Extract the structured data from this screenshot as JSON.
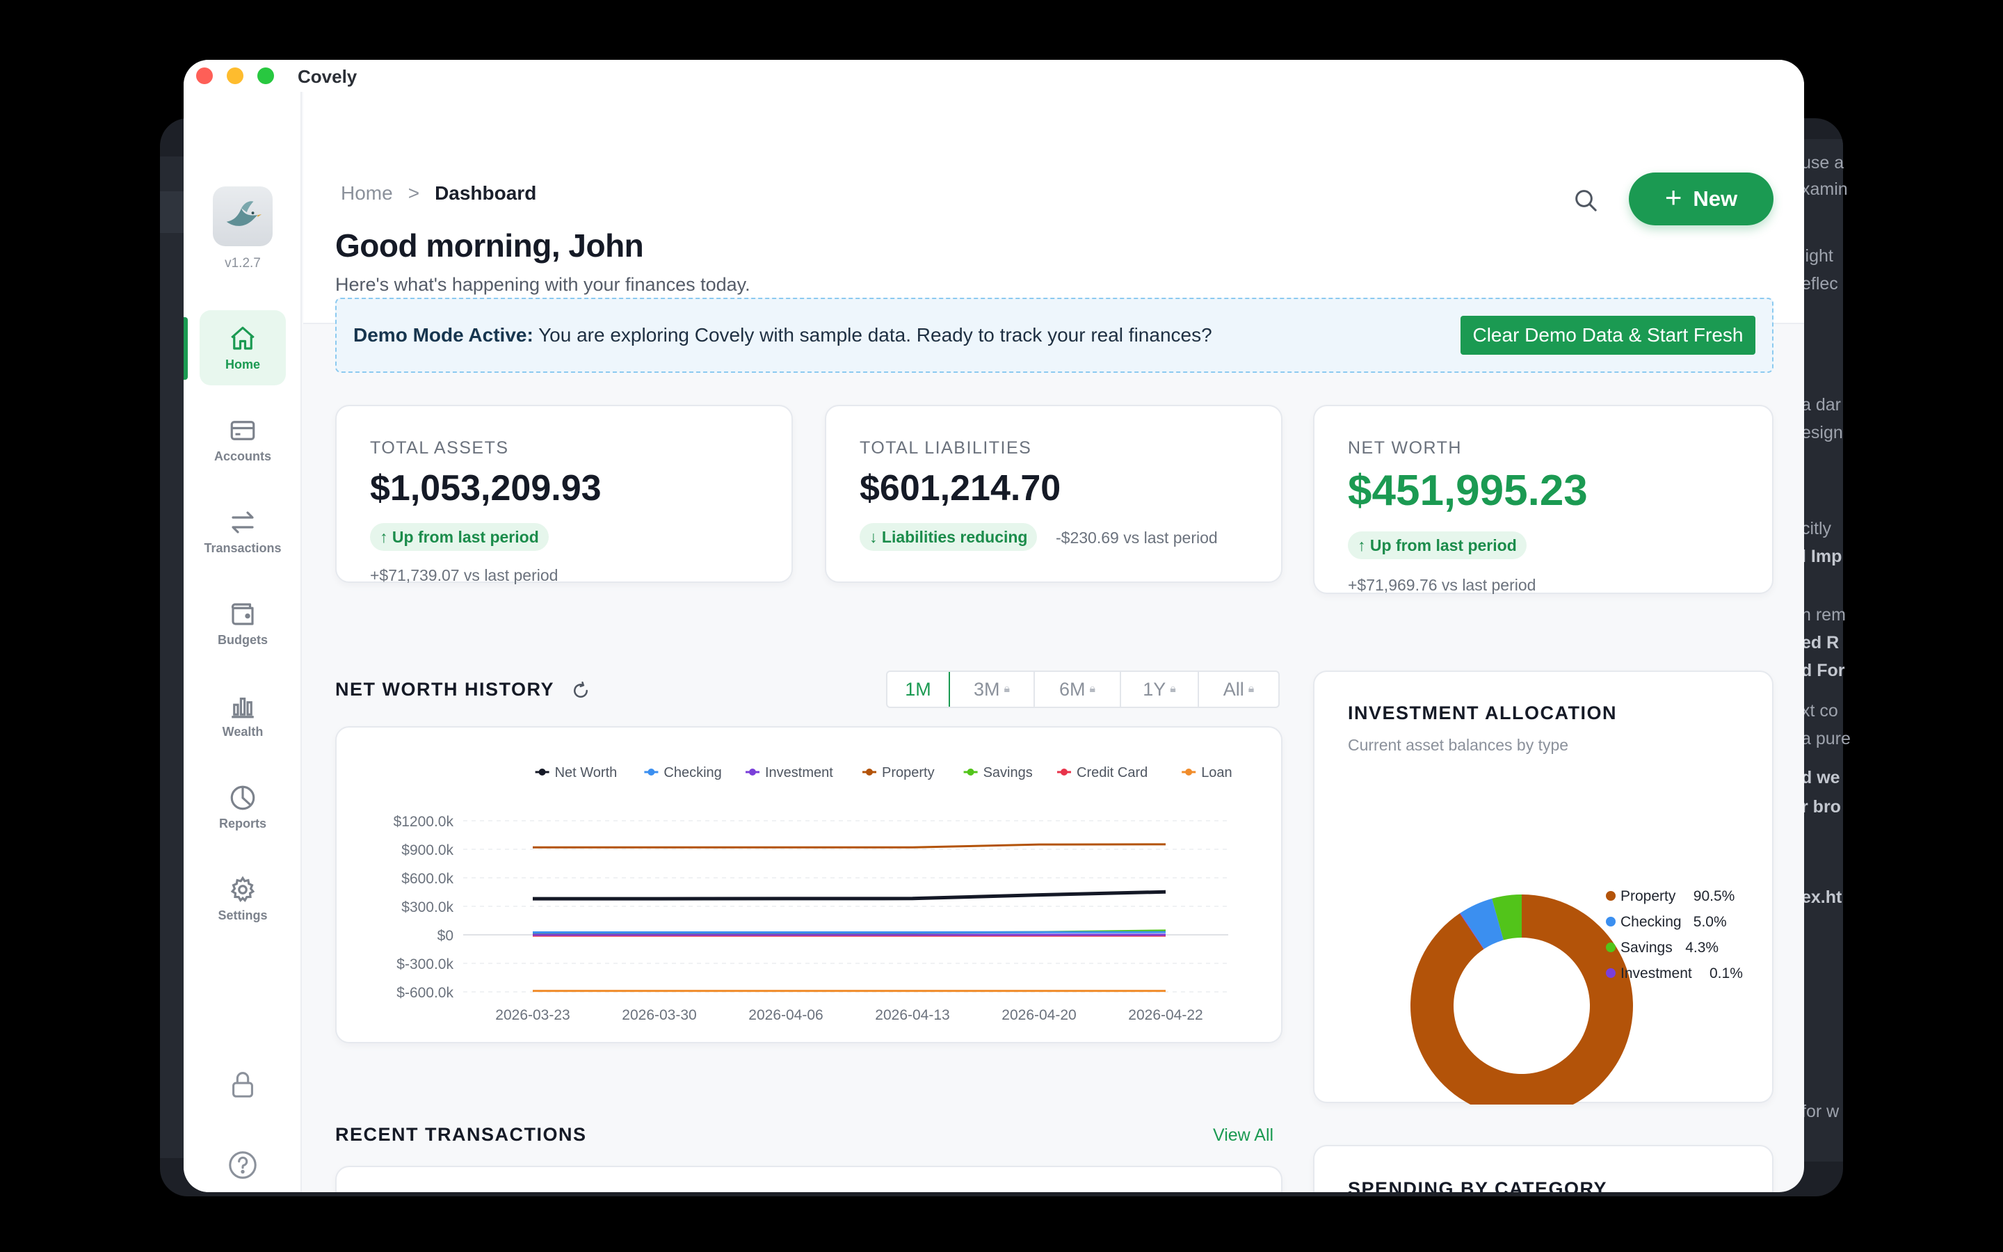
{
  "app": {
    "title": "Covely",
    "version": "v1.2.7"
  },
  "background_window": {
    "lines": [
      "use a",
      "xamin",
      "light",
      "eflec",
      "a dar",
      "esign",
      "citly",
      "l Imp",
      "h rem",
      "ed R",
      "d For",
      "xt co",
      "a pure",
      "d we",
      "r bro",
      "ex.ht",
      "for w"
    ]
  },
  "sidebar": {
    "items": [
      {
        "label": "Home",
        "icon": "home-icon",
        "active": true
      },
      {
        "label": "Accounts",
        "icon": "credit-card-icon"
      },
      {
        "label": "Transactions",
        "icon": "arrows-swap-icon"
      },
      {
        "label": "Budgets",
        "icon": "wallet-icon"
      },
      {
        "label": "Wealth",
        "icon": "bar-chart-icon"
      },
      {
        "label": "Reports",
        "icon": "pie-chart-icon"
      },
      {
        "label": "Settings",
        "icon": "gear-icon"
      }
    ],
    "bottom_icons": [
      "lock-icon",
      "help-icon"
    ]
  },
  "header": {
    "breadcrumb": {
      "home": "Home",
      "separator": ">",
      "current": "Dashboard"
    },
    "greeting": "Good morning, John",
    "subtitle": "Here's what's happening with your finances today.",
    "new_button": "New"
  },
  "demo_banner": {
    "label": "Demo Mode Active:",
    "message": "You are exploring Covely with sample data. Ready to track your real finances?",
    "button": "Clear Demo Data & Start Fresh"
  },
  "stats": {
    "total_assets": {
      "label": "TOTAL ASSETS",
      "value": "$1,053,209.93",
      "badge": "↑ Up from last period",
      "sub": "+$71,739.07 vs last period"
    },
    "total_liabilities": {
      "label": "TOTAL LIABILITIES",
      "value": "$601,214.70",
      "badge": "↓ Liabilities reducing",
      "sub": "-$230.69 vs last period"
    },
    "net_worth": {
      "label": "NET WORTH",
      "value": "$451,995.23",
      "badge": "↑ Up from last period",
      "sub": "+$71,969.76 vs last period"
    }
  },
  "net_worth_history": {
    "title": "NET WORTH HISTORY",
    "periods": [
      {
        "label": "1M",
        "active": true,
        "locked": false
      },
      {
        "label": "3M",
        "locked": true
      },
      {
        "label": "6M",
        "locked": true
      },
      {
        "label": "1Y",
        "locked": true
      },
      {
        "label": "All",
        "locked": true
      }
    ]
  },
  "investment_allocation": {
    "title": "INVESTMENT ALLOCATION",
    "subtitle": "Current asset balances by type"
  },
  "recent_transactions": {
    "title": "RECENT TRANSACTIONS",
    "view_all": "View All"
  },
  "spending_by_category": {
    "title": "SPENDING BY CATEGORY"
  },
  "chart_data": [
    {
      "type": "line",
      "categories": [
        "2026-03-23",
        "2026-03-30",
        "2026-04-06",
        "2026-04-13",
        "2026-04-20",
        "2026-04-22"
      ],
      "ylim": [
        -600,
        1200
      ],
      "y_ticks": [
        "$1200.0k",
        "$900.0k",
        "$600.0k",
        "$300.0k",
        "$0",
        "$-300.0k",
        "$-600.0k"
      ],
      "y_tick_values": [
        1200,
        900,
        600,
        300,
        0,
        -300,
        -600
      ],
      "legend_position": "top-right",
      "grid": true,
      "series": [
        {
          "name": "Net Worth",
          "color": "#141826",
          "values": [
            380,
            380,
            381,
            382,
            420,
            452
          ]
        },
        {
          "name": "Checking",
          "color": "#3b8ff0",
          "values": [
            26,
            26,
            26,
            26,
            27,
            28
          ]
        },
        {
          "name": "Investment",
          "color": "#7a3fd9",
          "values": [
            1,
            1,
            1,
            1,
            1,
            1
          ]
        },
        {
          "name": "Property",
          "color": "#b35309",
          "values": [
            920,
            920,
            920,
            920,
            950,
            952
          ]
        },
        {
          "name": "Savings",
          "color": "#52c41a",
          "values": [
            22,
            22,
            22,
            22,
            28,
            45
          ]
        },
        {
          "name": "Credit Card",
          "color": "#e8334a",
          "values": [
            -8,
            -8,
            -8,
            -8,
            -8,
            -8
          ]
        },
        {
          "name": "Loan",
          "color": "#f08c2b",
          "values": [
            -590,
            -590,
            -590,
            -590,
            -590,
            -590
          ]
        }
      ]
    },
    {
      "type": "pie",
      "categories": [
        "Property",
        "Checking",
        "Savings",
        "Investment"
      ],
      "values": [
        90.5,
        5.0,
        4.3,
        0.1
      ],
      "labels": [
        "90.5%",
        "5.0%",
        "4.3%",
        "0.1%"
      ],
      "colors": [
        "#b35309",
        "#3b8ff0",
        "#52c41a",
        "#7a3fd9"
      ],
      "legend_position": "right"
    }
  ]
}
